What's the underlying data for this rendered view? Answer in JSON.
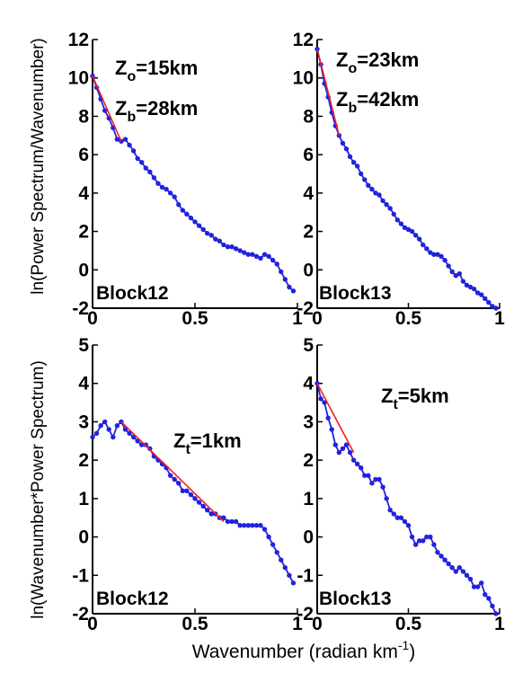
{
  "figure": {
    "ylabel_top": "ln(Power Spectrum/Wavenumber)",
    "ylabel_bottom": "ln(Wavenumber*Power Spectrum)",
    "xlabel": "Wavenumber (radian km",
    "xlabel_sup": "-1",
    "xlabel_end": ")"
  },
  "chart_data": [
    {
      "type": "line",
      "panel": "Block12 upper",
      "label": "Block12",
      "xlim": [
        0,
        1
      ],
      "ylim": [
        -2,
        12
      ],
      "xticks": [
        0,
        0.5,
        1
      ],
      "xtick_labels": [
        "0",
        "0.5",
        "1"
      ],
      "yticks": [
        -2,
        0,
        2,
        4,
        6,
        8,
        10,
        12
      ],
      "ytick_labels": [
        "-2",
        "0",
        "2",
        "4",
        "6",
        "8",
        "10",
        "12"
      ],
      "annotations": [
        {
          "main": "Z",
          "sub": "o",
          "rest": "=15km"
        },
        {
          "main": "Z",
          "sub": "b",
          "rest": "=28km"
        }
      ],
      "series": [
        {
          "color": "#2222dd",
          "x": [
            0.0,
            0.02,
            0.04,
            0.06,
            0.08,
            0.1,
            0.12,
            0.14,
            0.16,
            0.18,
            0.2,
            0.22,
            0.24,
            0.26,
            0.28,
            0.3,
            0.32,
            0.34,
            0.36,
            0.38,
            0.4,
            0.42,
            0.44,
            0.46,
            0.48,
            0.5,
            0.52,
            0.54,
            0.56,
            0.58,
            0.6,
            0.62,
            0.64,
            0.66,
            0.68,
            0.7,
            0.72,
            0.74,
            0.76,
            0.78,
            0.8,
            0.82,
            0.84,
            0.86,
            0.88,
            0.9,
            0.92,
            0.94,
            0.96,
            0.98
          ],
          "y": [
            10.1,
            9.5,
            8.9,
            8.3,
            7.9,
            7.4,
            6.8,
            6.7,
            6.8,
            6.5,
            6.2,
            5.8,
            5.6,
            5.3,
            5.1,
            4.8,
            4.5,
            4.3,
            4.2,
            4.0,
            3.8,
            3.4,
            3.1,
            2.9,
            2.7,
            2.5,
            2.3,
            2.1,
            1.9,
            1.8,
            1.6,
            1.5,
            1.3,
            1.2,
            1.2,
            1.1,
            1.0,
            0.9,
            0.8,
            0.8,
            0.7,
            0.6,
            0.8,
            0.7,
            0.5,
            0.3,
            -0.1,
            -0.5,
            -0.9,
            -1.1
          ]
        },
        {
          "color": "#ee2222",
          "x": [
            0.0,
            0.14
          ],
          "y": [
            10.1,
            6.7
          ]
        }
      ]
    },
    {
      "type": "line",
      "panel": "Block13 upper",
      "label": "Block13",
      "xlim": [
        0,
        1
      ],
      "ylim": [
        -2,
        12
      ],
      "xticks": [
        0,
        0.5,
        1
      ],
      "xtick_labels": [
        "0",
        "0.5",
        "1"
      ],
      "yticks": [
        -2,
        0,
        2,
        4,
        6,
        8,
        10,
        12
      ],
      "ytick_labels": [
        "-2",
        "0",
        "2",
        "4",
        "6",
        "8",
        "10",
        "12"
      ],
      "annotations": [
        {
          "main": "Z",
          "sub": "o",
          "rest": "=23km"
        },
        {
          "main": "Z",
          "sub": "b",
          "rest": "=42km"
        }
      ],
      "series": [
        {
          "color": "#2222dd",
          "x": [
            0.0,
            0.02,
            0.04,
            0.06,
            0.08,
            0.1,
            0.12,
            0.14,
            0.16,
            0.18,
            0.2,
            0.22,
            0.24,
            0.26,
            0.28,
            0.3,
            0.32,
            0.34,
            0.36,
            0.38,
            0.4,
            0.42,
            0.44,
            0.46,
            0.48,
            0.5,
            0.52,
            0.54,
            0.56,
            0.58,
            0.6,
            0.62,
            0.64,
            0.66,
            0.68,
            0.7,
            0.72,
            0.74,
            0.76,
            0.78,
            0.8,
            0.82,
            0.84,
            0.86,
            0.88,
            0.9,
            0.92,
            0.94,
            0.96,
            0.98
          ],
          "y": [
            11.5,
            10.7,
            9.7,
            9.0,
            8.2,
            7.5,
            7.0,
            6.6,
            6.3,
            5.9,
            5.6,
            5.4,
            5.0,
            4.7,
            4.4,
            4.2,
            4.0,
            3.9,
            3.6,
            3.4,
            3.2,
            2.9,
            2.6,
            2.4,
            2.2,
            2.1,
            2.0,
            1.8,
            1.6,
            1.3,
            1.1,
            0.9,
            0.8,
            0.8,
            0.7,
            0.5,
            0.2,
            -0.1,
            -0.3,
            -0.2,
            -0.6,
            -0.8,
            -0.9,
            -1.0,
            -1.2,
            -1.3,
            -1.5,
            -1.7,
            -1.9,
            -2.0
          ]
        },
        {
          "color": "#ee2222",
          "x": [
            0.0,
            0.12
          ],
          "y": [
            11.5,
            7.0
          ]
        }
      ]
    },
    {
      "type": "line",
      "panel": "Block12 lower",
      "label": "Block12",
      "xlim": [
        0,
        1
      ],
      "ylim": [
        -2,
        5
      ],
      "xticks": [
        0,
        0.5,
        1
      ],
      "xtick_labels": [
        "0",
        "0.5",
        "1"
      ],
      "yticks": [
        -2,
        -1,
        0,
        1,
        2,
        3,
        4,
        5
      ],
      "ytick_labels": [
        "-2",
        "-1",
        "0",
        "1",
        "2",
        "3",
        "4",
        "5"
      ],
      "annotations": [
        {
          "main": "Z",
          "sub": "t",
          "rest": "=1km"
        }
      ],
      "series": [
        {
          "color": "#2222dd",
          "x": [
            0.0,
            0.02,
            0.04,
            0.06,
            0.08,
            0.1,
            0.12,
            0.14,
            0.16,
            0.18,
            0.2,
            0.22,
            0.24,
            0.26,
            0.28,
            0.3,
            0.32,
            0.34,
            0.36,
            0.38,
            0.4,
            0.42,
            0.44,
            0.46,
            0.48,
            0.5,
            0.52,
            0.54,
            0.56,
            0.58,
            0.6,
            0.62,
            0.64,
            0.66,
            0.68,
            0.7,
            0.72,
            0.74,
            0.76,
            0.78,
            0.8,
            0.82,
            0.84,
            0.86,
            0.88,
            0.9,
            0.92,
            0.94,
            0.96,
            0.98
          ],
          "y": [
            2.6,
            2.7,
            2.9,
            3.0,
            2.8,
            2.6,
            2.9,
            3.0,
            2.8,
            2.7,
            2.6,
            2.5,
            2.4,
            2.4,
            2.3,
            2.1,
            2.0,
            1.9,
            1.8,
            1.6,
            1.5,
            1.4,
            1.2,
            1.2,
            1.1,
            1.0,
            0.9,
            0.8,
            0.7,
            0.6,
            0.6,
            0.5,
            0.5,
            0.4,
            0.4,
            0.4,
            0.3,
            0.3,
            0.3,
            0.3,
            0.3,
            0.3,
            0.2,
            0.0,
            -0.2,
            -0.4,
            -0.6,
            -0.8,
            -1.0,
            -1.2
          ]
        },
        {
          "color": "#ee2222",
          "x": [
            0.14,
            0.64
          ],
          "y": [
            3.0,
            0.4
          ]
        }
      ]
    },
    {
      "type": "line",
      "panel": "Block13 lower",
      "label": "Block13",
      "xlim": [
        0,
        1
      ],
      "ylim": [
        -2,
        5
      ],
      "xticks": [
        0,
        0.5,
        1
      ],
      "xtick_labels": [
        "0",
        "0.5",
        "1"
      ],
      "yticks": [
        -2,
        -1,
        0,
        1,
        2,
        3,
        4,
        5
      ],
      "ytick_labels": [
        "-2",
        "-1",
        "0",
        "1",
        "2",
        "3",
        "4",
        "5"
      ],
      "annotations": [
        {
          "main": "Z",
          "sub": "t",
          "rest": "=5km"
        }
      ],
      "series": [
        {
          "color": "#2222dd",
          "x": [
            0.0,
            0.02,
            0.04,
            0.06,
            0.08,
            0.1,
            0.12,
            0.14,
            0.16,
            0.18,
            0.2,
            0.22,
            0.24,
            0.26,
            0.28,
            0.3,
            0.32,
            0.34,
            0.36,
            0.38,
            0.4,
            0.42,
            0.44,
            0.46,
            0.48,
            0.5,
            0.52,
            0.54,
            0.56,
            0.58,
            0.6,
            0.62,
            0.64,
            0.66,
            0.68,
            0.7,
            0.72,
            0.74,
            0.76,
            0.78,
            0.8,
            0.82,
            0.84,
            0.86,
            0.88,
            0.9,
            0.92,
            0.94,
            0.96,
            0.98
          ],
          "y": [
            4.0,
            3.6,
            3.5,
            3.1,
            2.8,
            2.4,
            2.2,
            2.3,
            2.4,
            2.2,
            2.0,
            1.9,
            1.8,
            1.6,
            1.6,
            1.4,
            1.5,
            1.5,
            1.3,
            1.0,
            0.7,
            0.6,
            0.5,
            0.5,
            0.4,
            0.3,
            0.0,
            -0.2,
            -0.1,
            -0.1,
            0.0,
            0.0,
            -0.2,
            -0.4,
            -0.5,
            -0.6,
            -0.7,
            -0.8,
            -0.9,
            -0.8,
            -0.9,
            -1.0,
            -1.1,
            -1.3,
            -1.3,
            -1.2,
            -1.5,
            -1.6,
            -1.8,
            -2.0
          ]
        },
        {
          "color": "#ee2222",
          "x": [
            0.0,
            0.2
          ],
          "y": [
            4.0,
            2.2
          ]
        }
      ]
    }
  ]
}
